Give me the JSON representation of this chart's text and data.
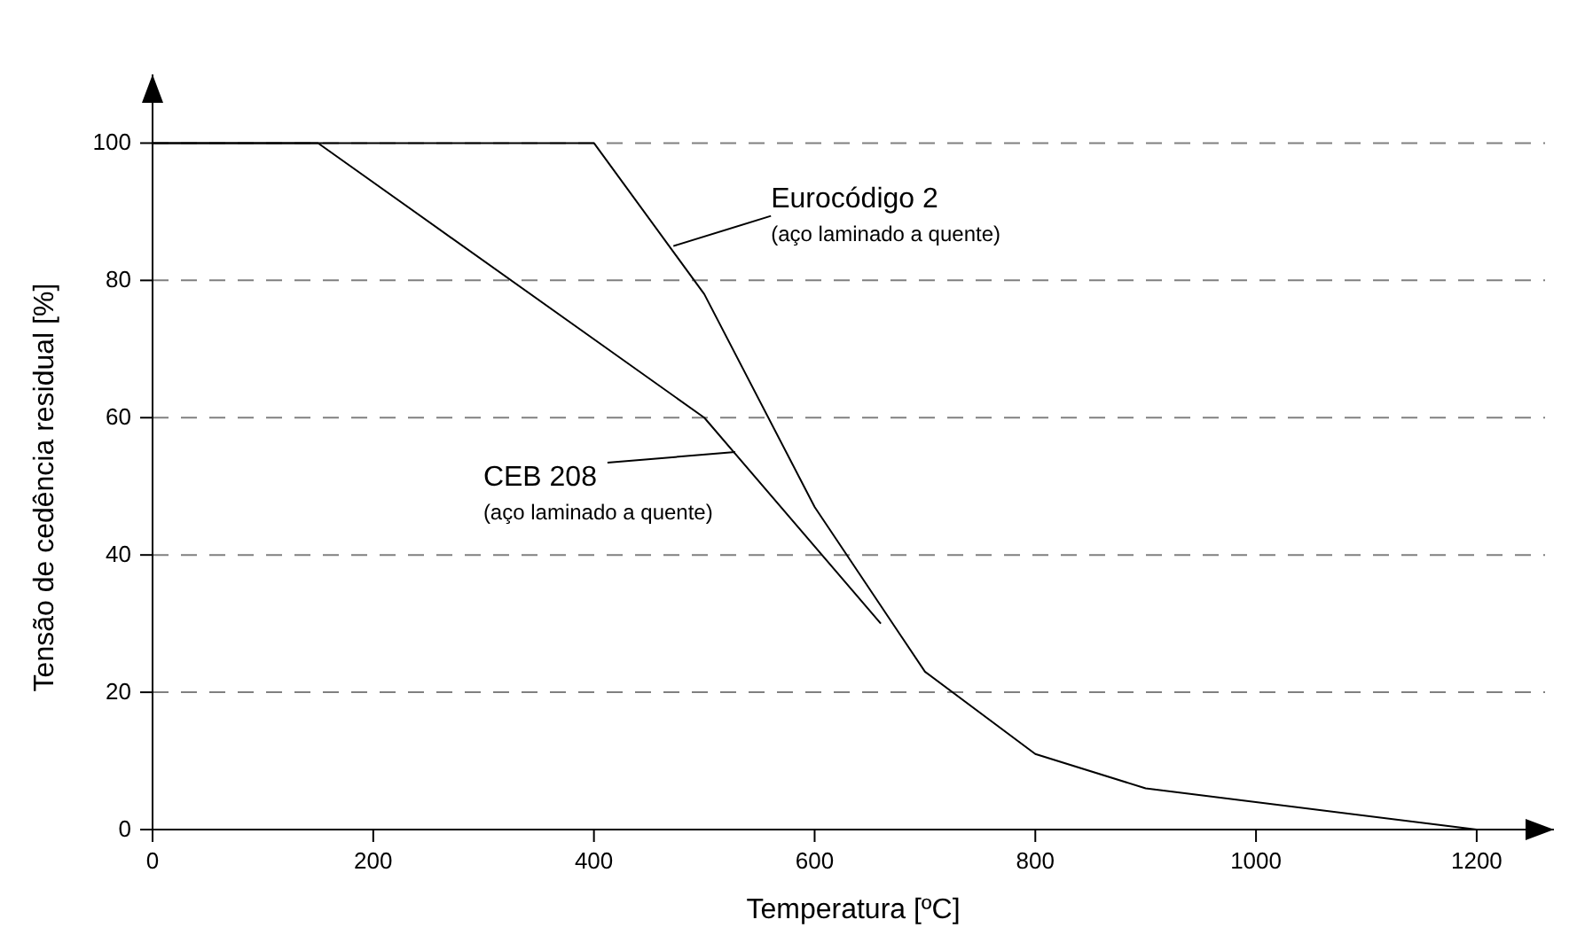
{
  "chart_data": {
    "type": "line",
    "xlabel": "Temperatura [ºC]",
    "ylabel": "Tensão de cedência residual [%]",
    "xlim": [
      0,
      1270
    ],
    "ylim": [
      0,
      110
    ],
    "xticks": [
      0,
      200,
      400,
      600,
      800,
      1000,
      1200
    ],
    "yticks": [
      0,
      20,
      40,
      60,
      80,
      100
    ],
    "grid": "y",
    "line_style": "solid",
    "marker": "none",
    "series": [
      {
        "color": "#000000",
        "x": [
          0,
          400,
          500,
          600,
          700,
          800,
          900,
          1200
        ],
        "values": [
          100,
          100,
          78,
          47,
          23,
          11,
          6,
          0
        ]
      },
      {
        "color": "#000000",
        "x": [
          0,
          150,
          500,
          660
        ],
        "values": [
          100,
          100,
          60,
          30
        ]
      }
    ],
    "annotations": [
      {
        "text": "Eurocódigo 2",
        "x": 472,
        "y": 85
      },
      "(aço laminado a quente)",
      {
        "text": "CEB 208",
        "x": 528,
        "y": 55
      },
      "(aço laminado a quente)"
    ]
  }
}
